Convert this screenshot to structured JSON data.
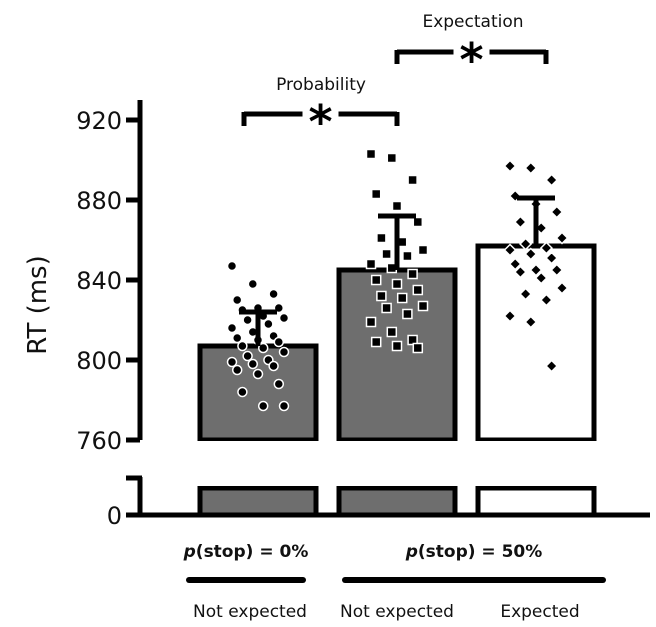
{
  "chart_data": {
    "type": "bar",
    "title": "",
    "xlabel": "",
    "ylabel": "RT (ms)",
    "ylim": [
      760,
      920
    ],
    "y_ticks": [
      "920",
      "880",
      "840",
      "800",
      "760",
      "0"
    ],
    "axis_break": true,
    "categories": [
      "Not expected",
      "Not expected",
      "Expected"
    ],
    "groups": [
      {
        "label_p": "p",
        "label_rest": "(stop) = 0%",
        "categories": [
          0
        ]
      },
      {
        "label_p": "p",
        "label_rest": "(stop) = 50%",
        "categories": [
          1,
          2
        ]
      }
    ],
    "series": [
      {
        "values": [
          807,
          845,
          857
        ],
        "errors": [
          17,
          27,
          24
        ],
        "colors": [
          "#6e6e6e",
          "#6e6e6e",
          "#ffffff"
        ],
        "point_shapes": [
          "circle",
          "square",
          "diamond"
        ],
        "points": [
          [
            847,
            838,
            833,
            830,
            826,
            826,
            825,
            822,
            821,
            820,
            818,
            816,
            814,
            812,
            811,
            810,
            809,
            807,
            806,
            804,
            802,
            800,
            799,
            798,
            797,
            795,
            793,
            788,
            784,
            777,
            777
          ],
          [
            903,
            901,
            890,
            883,
            877,
            869,
            861,
            859,
            855,
            853,
            852,
            848,
            846,
            843,
            840,
            838,
            835,
            832,
            831,
            827,
            826,
            823,
            819,
            814,
            810,
            809,
            807,
            806
          ],
          [
            897,
            896,
            890,
            882,
            878,
            874,
            869,
            866,
            861,
            858,
            856,
            855,
            853,
            851,
            848,
            845,
            845,
            844,
            841,
            836,
            833,
            830,
            822,
            819,
            797
          ]
        ]
      }
    ],
    "significance": [
      {
        "label": "Probability",
        "marker": "*",
        "from": 0,
        "to": 1
      },
      {
        "label": "Expectation",
        "marker": "*",
        "from": 1,
        "to": 2
      }
    ]
  }
}
